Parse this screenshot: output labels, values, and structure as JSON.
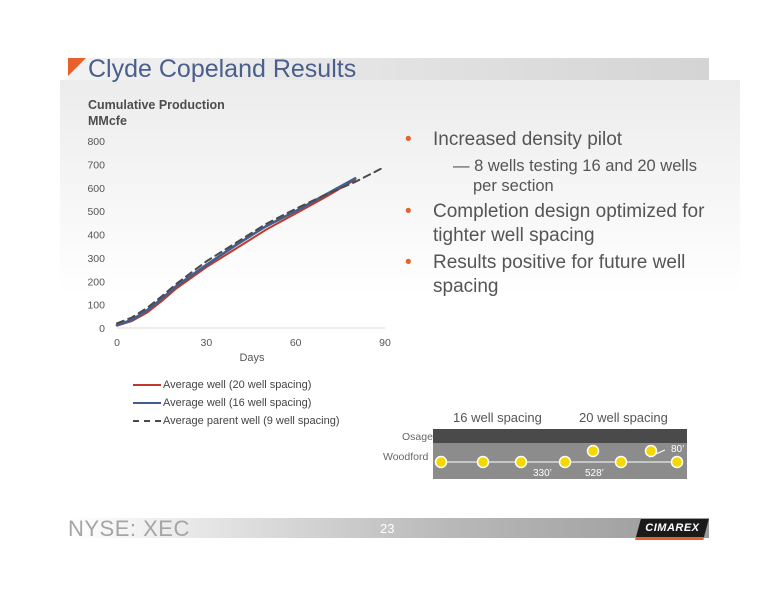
{
  "slide": {
    "title": "Clyde Copeland Results",
    "footer_ticker": "NYSE: XEC",
    "page_number": "23",
    "logo_text": "CIMAREX",
    "accent_color": "#e8612c",
    "title_color": "#4a5f8c"
  },
  "bullets": [
    {
      "text": "Increased density pilot",
      "sub": [
        "— 8 wells testing 16 and 20 wells per section"
      ]
    },
    {
      "text": "Completion design optimized for tighter well spacing",
      "sub": []
    },
    {
      "text": "Results positive for future well spacing",
      "sub": []
    }
  ],
  "chart_data": {
    "type": "line",
    "ylabel_lines": [
      "Cumulative Production",
      "MMcfe"
    ],
    "xlabel": "Days",
    "xlim": [
      0,
      90
    ],
    "ylim": [
      0,
      800
    ],
    "xticks": [
      0,
      30,
      60,
      90
    ],
    "yticks": [
      0,
      100,
      200,
      300,
      400,
      500,
      600,
      700,
      800
    ],
    "grid": false,
    "legend_position": "bottom-left",
    "series": [
      {
        "name": "Average well (20 well spacing)",
        "color": "#c0392b",
        "dash": false,
        "x": [
          0,
          5,
          10,
          15,
          20,
          30,
          40,
          50,
          60,
          70,
          80
        ],
        "y": [
          10,
          30,
          65,
          115,
          170,
          260,
          340,
          420,
          490,
          560,
          635
        ]
      },
      {
        "name": "Average well (16 well spacing)",
        "color": "#3f5f91",
        "dash": false,
        "x": [
          0,
          5,
          10,
          15,
          20,
          30,
          40,
          50,
          60,
          70,
          80
        ],
        "y": [
          12,
          35,
          75,
          125,
          180,
          270,
          355,
          435,
          500,
          570,
          640
        ]
      },
      {
        "name": "Average parent well (9 well spacing)",
        "color": "#4a4a4a",
        "dash": true,
        "x": [
          0,
          5,
          10,
          15,
          20,
          30,
          40,
          50,
          60,
          70,
          80,
          90
        ],
        "y": [
          20,
          45,
          85,
          135,
          190,
          285,
          365,
          445,
          510,
          570,
          625,
          690
        ]
      }
    ]
  },
  "diagram": {
    "heading_16": "16 well spacing",
    "heading_20": "20 well spacing",
    "layer_osage": "Osage",
    "layer_woodford": "Woodford",
    "dist_330": "330’",
    "dist_528": "528’",
    "dist_80": "80’"
  }
}
